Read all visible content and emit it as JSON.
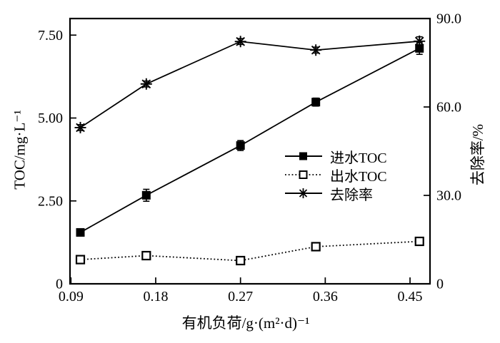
{
  "figure": {
    "background": "#ffffff",
    "ink_color": "#000000"
  },
  "chart_data": {
    "type": "line",
    "title": "",
    "xlabel": "有机负荷/g·(m²·d)⁻¹",
    "ylabel_left": "TOC/mg·L⁻¹",
    "ylabel_right": "去除率/%",
    "grid": false,
    "legend_position": "inside-right-middle",
    "xlim": [
      0.089,
      0.4712
    ],
    "ylim_left": [
      0,
      8
    ],
    "ylim_right": [
      0,
      90
    ],
    "x_ticks": {
      "values": [
        0.09,
        0.18,
        0.27,
        0.36,
        0.45
      ],
      "labels": [
        "0.09",
        "0.18",
        "0.27",
        "0.36",
        "0.45"
      ]
    },
    "y_ticks_left": {
      "values": [
        0,
        2.5,
        5.0,
        7.5
      ],
      "labels": [
        "0",
        "2.50",
        "5.00",
        "7.50"
      ]
    },
    "y_ticks_right": {
      "values": [
        0,
        30,
        60,
        90
      ],
      "labels": [
        "0",
        "30.0",
        "60.0",
        "90.0"
      ]
    },
    "x": [
      0.1,
      0.17,
      0.27,
      0.35,
      0.46
    ],
    "series": [
      {
        "name": "进水TOC",
        "axis": "left",
        "line": "solid",
        "marker": "square-filled",
        "values": [
          1.55,
          2.67,
          4.17,
          5.48,
          7.1
        ],
        "errors": [
          0.08,
          0.18,
          0.15,
          0.12,
          0.18
        ]
      },
      {
        "name": "出水TOC",
        "axis": "left",
        "line": "dotted",
        "marker": "square-open",
        "values": [
          0.73,
          0.85,
          0.7,
          1.12,
          1.28
        ],
        "errors": [
          0.12,
          0.12,
          0.1,
          0.1,
          0.05
        ]
      },
      {
        "name": "去除率",
        "axis": "right",
        "line": "solid",
        "marker": "asterisk",
        "values": [
          53.0,
          67.8,
          82.2,
          79.3,
          82.3
        ],
        "errors": [
          1.0,
          1.0,
          1.0,
          1.0,
          1.5
        ]
      }
    ]
  }
}
